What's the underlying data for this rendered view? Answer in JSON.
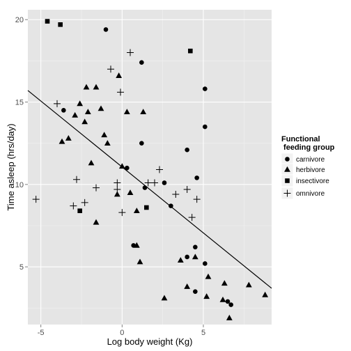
{
  "chart_data": {
    "type": "scatter",
    "title": "",
    "xlabel": "Log body weight (Kg)",
    "ylabel": "Time asleep (hrs/day)",
    "xlim": [
      -5.8,
      9.2
    ],
    "ylim": [
      1.5,
      20.6
    ],
    "x_ticks": [
      -5,
      0,
      5
    ],
    "y_ticks": [
      5,
      10,
      15,
      20
    ],
    "grid": true,
    "legend": {
      "title_lines": [
        "Functional",
        " feeding group"
      ],
      "position": "right"
    },
    "fit_line": {
      "x": [
        -5.8,
        9.2
      ],
      "y": [
        15.7,
        3.7
      ],
      "color": "#000000"
    },
    "series": [
      {
        "name": "carnivore",
        "shape": "circle",
        "points": [
          [
            -1.0,
            19.4
          ],
          [
            -3.6,
            14.5
          ],
          [
            1.2,
            17.4
          ],
          [
            1.2,
            12.5
          ],
          [
            0.3,
            11.0
          ],
          [
            1.4,
            9.8
          ],
          [
            2.6,
            10.1
          ],
          [
            3.0,
            8.7
          ],
          [
            4.6,
            10.4
          ],
          [
            4.0,
            12.1
          ],
          [
            5.1,
            15.8
          ],
          [
            5.1,
            13.5
          ],
          [
            0.7,
            6.3
          ],
          [
            4.0,
            5.6
          ],
          [
            4.5,
            6.2
          ],
          [
            5.1,
            5.2
          ],
          [
            4.5,
            3.5
          ],
          [
            6.5,
            2.9
          ],
          [
            6.7,
            2.7
          ]
        ]
      },
      {
        "name": "herbivore",
        "shape": "triangle",
        "points": [
          [
            -2.2,
            15.9
          ],
          [
            -1.6,
            15.9
          ],
          [
            -3.7,
            12.6
          ],
          [
            -3.3,
            12.8
          ],
          [
            -2.9,
            14.2
          ],
          [
            -2.6,
            14.9
          ],
          [
            -2.3,
            13.8
          ],
          [
            -2.1,
            14.4
          ],
          [
            -1.3,
            14.6
          ],
          [
            -1.1,
            13.0
          ],
          [
            -0.9,
            12.5
          ],
          [
            -1.9,
            11.3
          ],
          [
            -1.6,
            7.7
          ],
          [
            -0.2,
            16.6
          ],
          [
            0.3,
            14.4
          ],
          [
            1.3,
            14.4
          ],
          [
            0.0,
            11.1
          ],
          [
            -0.3,
            9.4
          ],
          [
            0.5,
            9.5
          ],
          [
            0.9,
            8.4
          ],
          [
            1.1,
            5.3
          ],
          [
            0.9,
            6.3
          ],
          [
            2.6,
            3.1
          ],
          [
            3.6,
            5.4
          ],
          [
            4.0,
            3.8
          ],
          [
            4.5,
            5.6
          ],
          [
            5.3,
            4.4
          ],
          [
            5.2,
            3.2
          ],
          [
            6.3,
            4.0
          ],
          [
            6.2,
            3.0
          ],
          [
            6.6,
            1.9
          ],
          [
            7.8,
            3.9
          ],
          [
            8.8,
            3.3
          ]
        ]
      },
      {
        "name": "insectivore",
        "shape": "square",
        "points": [
          [
            -4.6,
            19.9
          ],
          [
            -3.8,
            19.7
          ],
          [
            4.2,
            18.1
          ],
          [
            -2.6,
            8.4
          ],
          [
            1.5,
            8.6
          ]
        ]
      },
      {
        "name": "omnivore",
        "shape": "plus",
        "points": [
          [
            -5.3,
            9.1
          ],
          [
            -4.0,
            14.9
          ],
          [
            -3.0,
            8.7
          ],
          [
            -2.8,
            10.3
          ],
          [
            -2.3,
            8.9
          ],
          [
            -1.6,
            9.8
          ],
          [
            -0.7,
            17.0
          ],
          [
            -0.1,
            15.6
          ],
          [
            0.5,
            18.0
          ],
          [
            -0.3,
            10.1
          ],
          [
            -0.3,
            9.7
          ],
          [
            0.0,
            8.3
          ],
          [
            1.6,
            10.1
          ],
          [
            2.0,
            10.1
          ],
          [
            2.3,
            10.9
          ],
          [
            3.3,
            9.4
          ],
          [
            4.0,
            9.7
          ],
          [
            4.3,
            8.0
          ],
          [
            4.6,
            9.1
          ]
        ]
      }
    ]
  }
}
